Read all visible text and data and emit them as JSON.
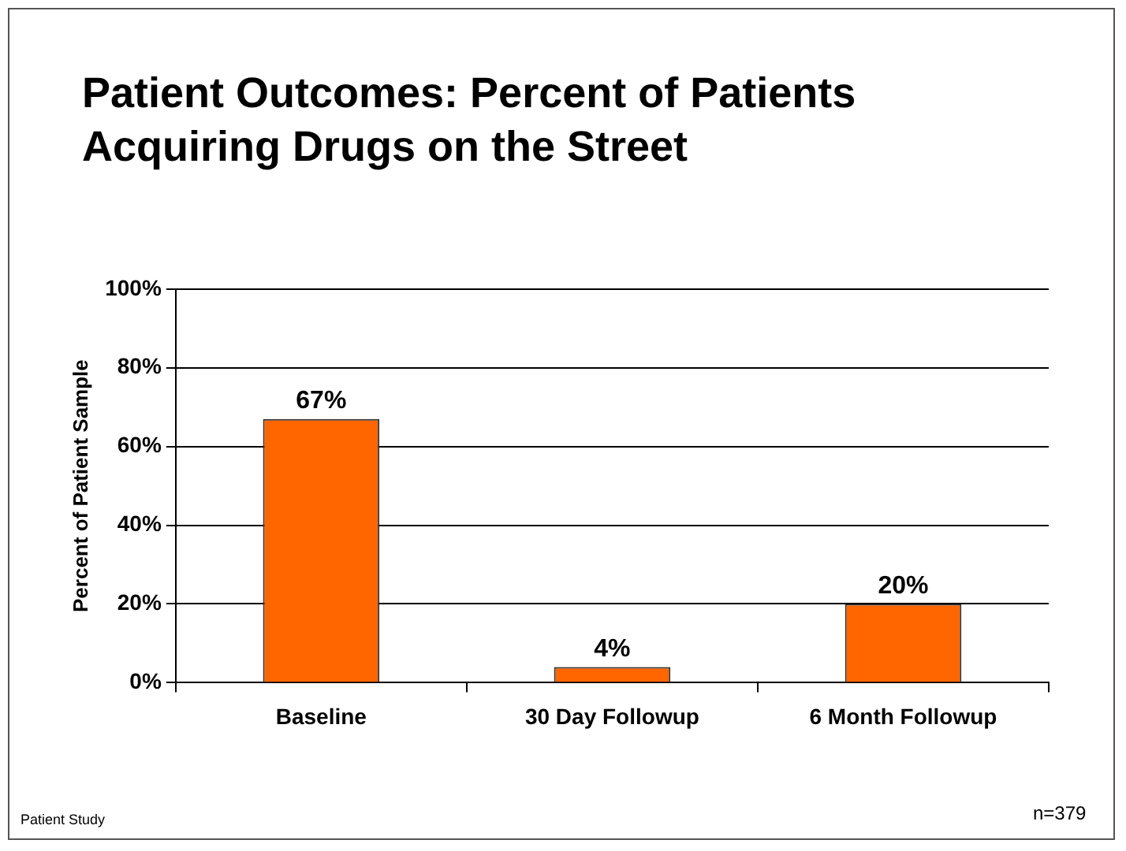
{
  "chart_data": {
    "type": "bar",
    "title": "Patient Outcomes: Percent of Patients Acquiring Drugs on the Street",
    "ylabel": "Percent of Patient Sample",
    "categories": [
      "Baseline",
      "30 Day Followup",
      "6 Month Followup"
    ],
    "values": [
      67,
      4,
      20
    ],
    "value_labels": [
      "67%",
      "4%",
      "20%"
    ],
    "color": "#ff6600",
    "ylim": [
      0,
      100
    ],
    "yticks": [
      {
        "value": 0,
        "label": "0%"
      },
      {
        "value": 20,
        "label": "20%"
      },
      {
        "value": 40,
        "label": "40%"
      },
      {
        "value": 60,
        "label": "60%"
      },
      {
        "value": 80,
        "label": "80%"
      },
      {
        "value": 100,
        "label": "100%"
      }
    ],
    "grid": "y",
    "legend": false,
    "annotations": [
      "Patient Study",
      "n=379"
    ]
  }
}
